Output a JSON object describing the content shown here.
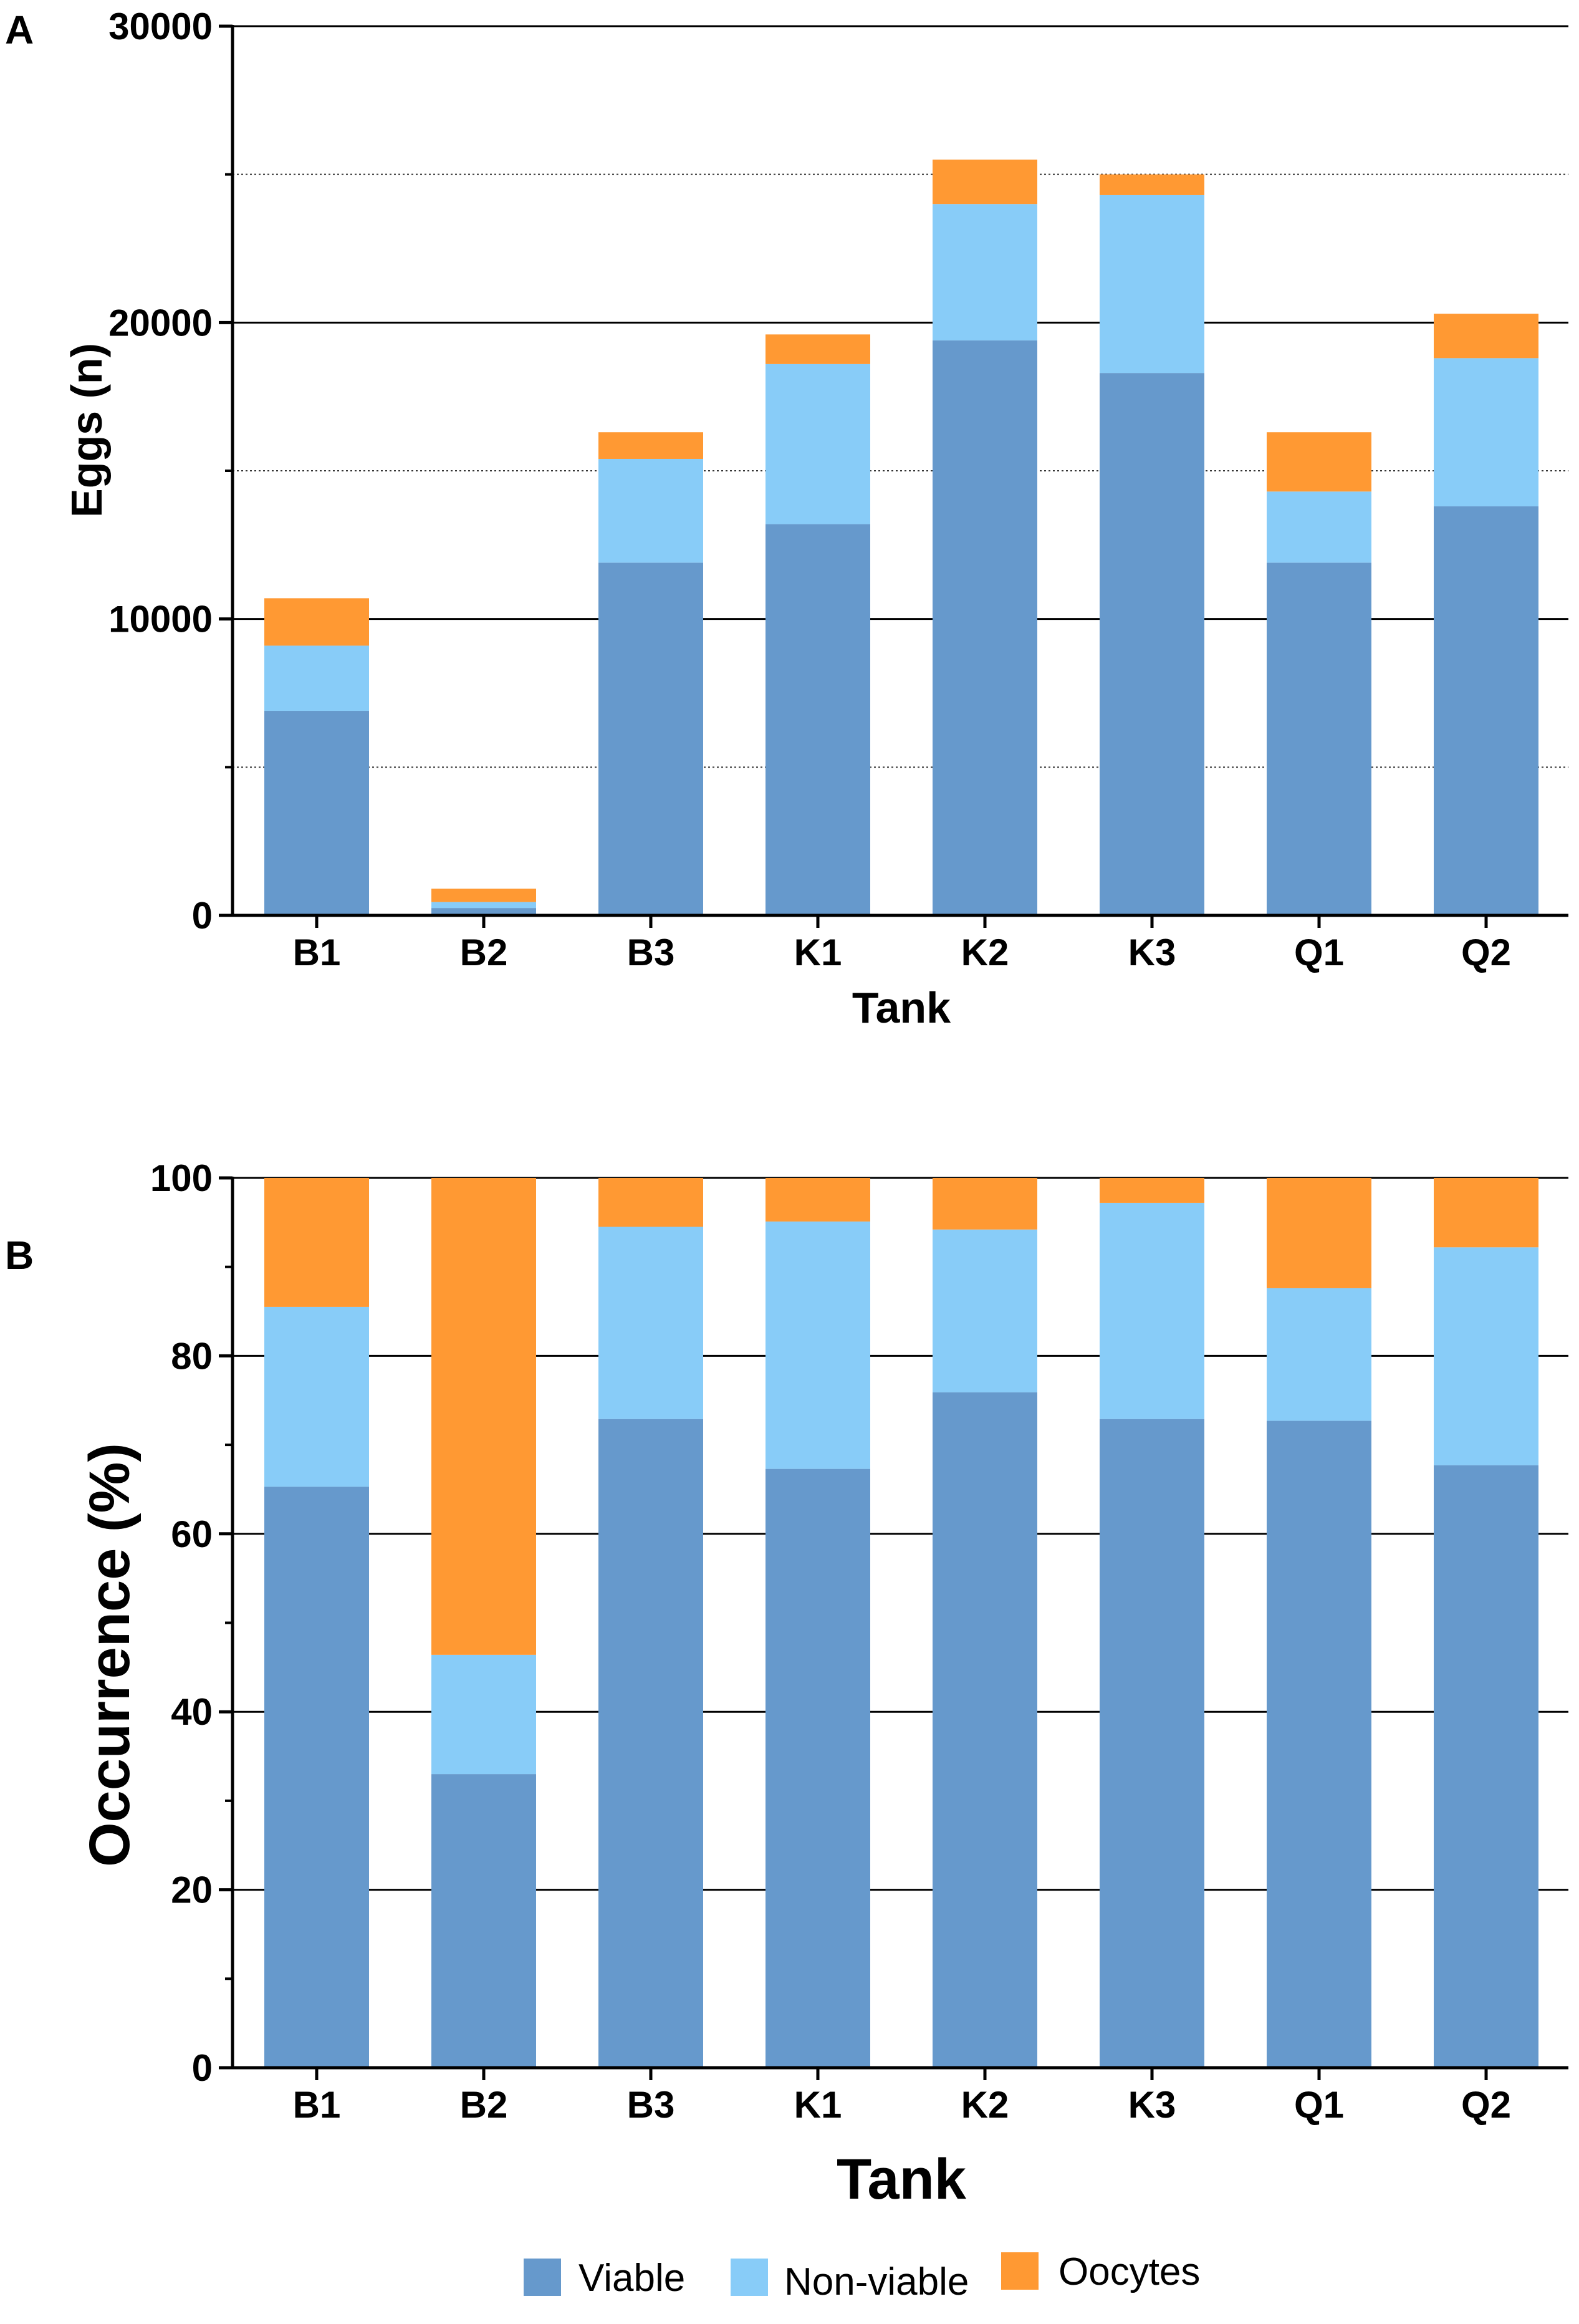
{
  "legend": [
    {
      "name": "Viable",
      "color": "#6699CC"
    },
    {
      "name": "Non-viable",
      "color": "#88CCF8"
    },
    {
      "name": "Oocytes",
      "color": "#FF9933"
    }
  ],
  "chart_data": [
    {
      "panel": "A",
      "type": "bar",
      "stacked": true,
      "title": "",
      "xlabel": "Tank",
      "ylabel": "Eggs (n)",
      "ylim": [
        0,
        30000
      ],
      "yticks": [
        0,
        10000,
        20000,
        30000
      ],
      "minor_grid": [
        5000,
        15000,
        25000
      ],
      "categories": [
        "B1",
        "B2",
        "B3",
        "K1",
        "K2",
        "K3",
        "Q1",
        "Q2"
      ],
      "series": [
        {
          "name": "Viable",
          "values": [
            6900,
            250,
            11900,
            13200,
            19400,
            18300,
            11900,
            13800
          ]
        },
        {
          "name": "Non-viable",
          "values": [
            2200,
            200,
            3500,
            5400,
            4600,
            6000,
            2400,
            5000
          ]
        },
        {
          "name": "Oocytes",
          "values": [
            1600,
            450,
            900,
            1000,
            1500,
            700,
            2000,
            1500
          ]
        }
      ]
    },
    {
      "panel": "B",
      "type": "bar",
      "stacked": true,
      "title": "",
      "xlabel": "Tank",
      "ylabel": "Occurrence (%)",
      "ylim": [
        0,
        100
      ],
      "yticks": [
        0,
        20,
        40,
        60,
        80,
        100
      ],
      "categories": [
        "B1",
        "B2",
        "B3",
        "K1",
        "K2",
        "K3",
        "Q1",
        "Q2"
      ],
      "series": [
        {
          "name": "Viable",
          "values": [
            65.3,
            33.0,
            72.9,
            67.3,
            75.9,
            72.9,
            72.7,
            67.7
          ]
        },
        {
          "name": "Non-viable",
          "values": [
            20.2,
            13.4,
            21.6,
            27.8,
            18.3,
            24.3,
            14.9,
            24.5
          ]
        },
        {
          "name": "Oocytes",
          "values": [
            14.5,
            53.6,
            5.5,
            4.9,
            5.8,
            2.8,
            12.4,
            7.8
          ]
        }
      ]
    }
  ]
}
